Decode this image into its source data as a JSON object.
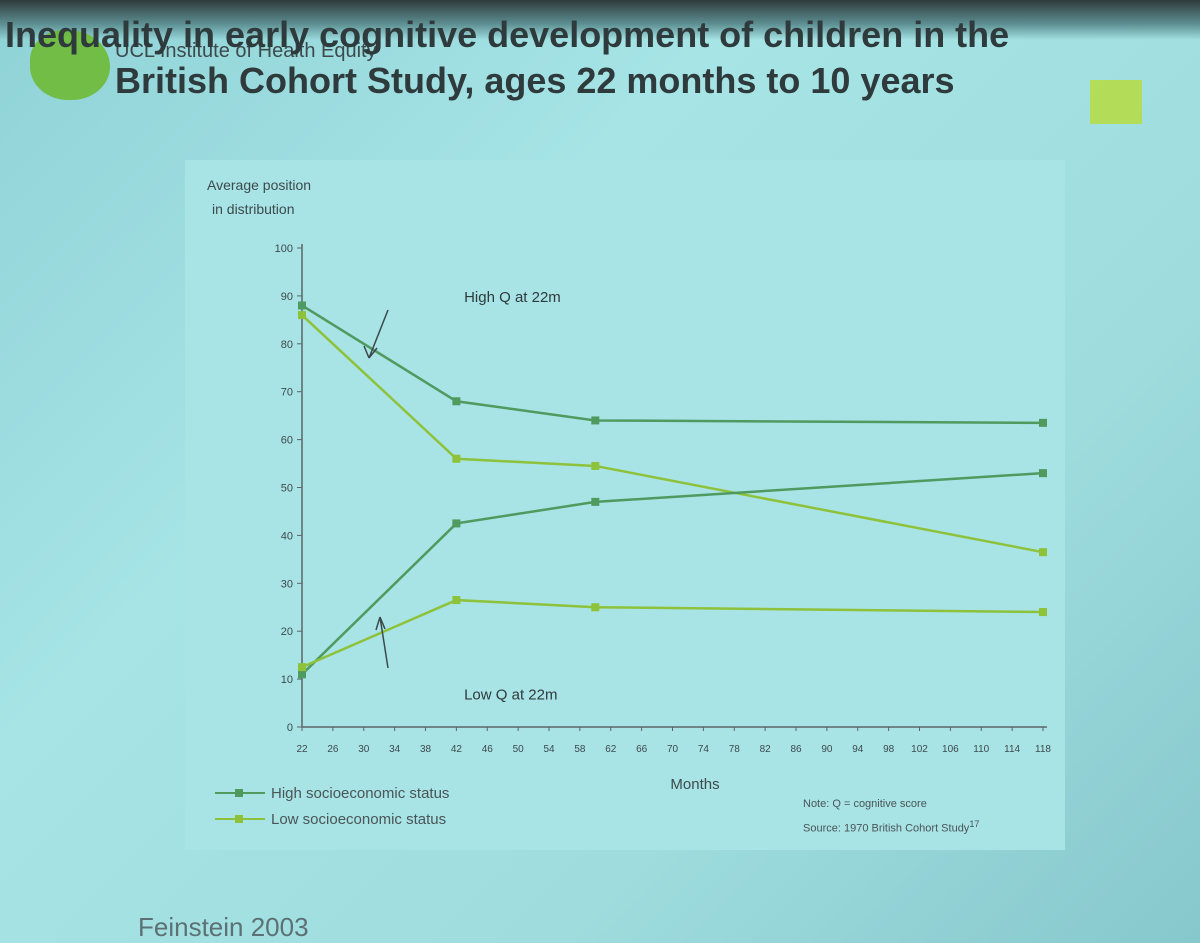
{
  "slide": {
    "title_line1": "Inequality in early cognitive development of children in the",
    "title_line2": "British Cohort Study, ages 22 months to 10 years",
    "brand": "UCL Institute of Health Equity",
    "citation": "Feinstein 2003"
  },
  "chart_data": {
    "type": "line",
    "title": "",
    "ylabel_line1": "Average position",
    "ylabel_line2": "in distribution",
    "xlabel": "Months",
    "ylim": [
      0,
      100
    ],
    "xlim": [
      22,
      118
    ],
    "yticks": [
      0,
      10,
      20,
      30,
      40,
      50,
      60,
      70,
      80,
      90,
      100
    ],
    "xticks": [
      22,
      26,
      30,
      34,
      38,
      42,
      46,
      50,
      54,
      58,
      62,
      66,
      70,
      74,
      78,
      82,
      86,
      90,
      94,
      98,
      102,
      106,
      110,
      114,
      118
    ],
    "grid": false,
    "legend_position": "bottom-left",
    "series": [
      {
        "name": "High socioeconomic status",
        "color": "#4f9a5e",
        "group": "High Q at 22m",
        "x": [
          22,
          42,
          60,
          118
        ],
        "y": [
          88,
          68,
          64,
          63.5
        ]
      },
      {
        "name": "Low socioeconomic status",
        "color": "#8dc23a",
        "group": "High Q at 22m",
        "x": [
          22,
          42,
          60,
          118
        ],
        "y": [
          86,
          56,
          54.5,
          36.5
        ]
      },
      {
        "name": "High socioeconomic status",
        "color": "#4f9a5e",
        "group": "Low Q at 22m",
        "x": [
          22,
          42,
          60,
          118
        ],
        "y": [
          11,
          42.5,
          47,
          53
        ]
      },
      {
        "name": "Low socioeconomic status",
        "color": "#8dc23a",
        "group": "Low Q at 22m",
        "x": [
          22,
          42,
          60,
          118
        ],
        "y": [
          12.5,
          26.5,
          25,
          24
        ]
      }
    ],
    "annotations": [
      {
        "text": "High Q at 22m",
        "x": 43,
        "y": 90
      },
      {
        "text": "Low Q at 22m",
        "x": 43,
        "y": 7
      }
    ],
    "legend": [
      {
        "label": "High socioeconomic status",
        "color": "#4f9a5e"
      },
      {
        "label": "Low socioeconomic status",
        "color": "#8dc23a"
      }
    ],
    "note": "Note: Q = cognitive score",
    "source": "Source: 1970 British Cohort Study",
    "source_superscript": "17"
  }
}
